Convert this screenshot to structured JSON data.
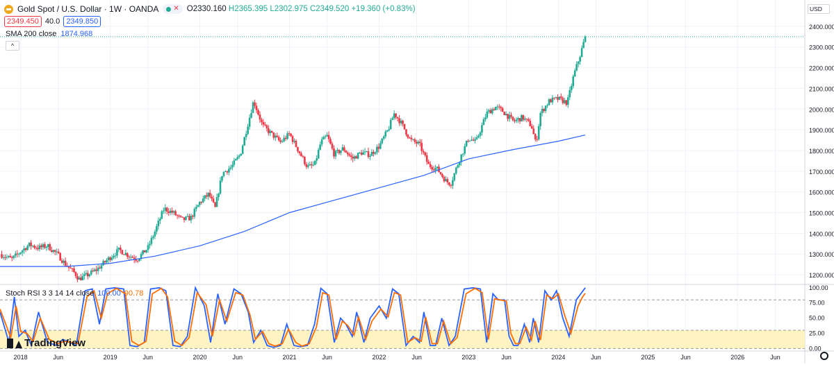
{
  "header": {
    "title": "Gold Spot / U.S. Dollar · 1W · OANDA",
    "open": "O2330.160",
    "high": "H2365.395",
    "low": "L2302.975",
    "close": "C2349.520",
    "change": "+19.360 (+0.83%)",
    "bid": "2349.450",
    "spread": "40.0",
    "ask": "2349.850",
    "currency": "USD"
  },
  "sma": {
    "label": "SMA 200 close",
    "value": "1874.968"
  },
  "rsi": {
    "label": "Stoch RSI 3 3 14 14 close",
    "k": "100.00",
    "d": "90.78"
  },
  "logo_text": "TradingView",
  "collapse_glyph": "^",
  "colors": {
    "up": "#22ab94",
    "down": "#f23645",
    "sma": "#2962ff",
    "k": "#2962ff",
    "d": "#ff6d00",
    "band": "#fff3c2"
  },
  "chart_data": [
    {
      "type": "candlestick",
      "title": "Gold Spot / U.S. Dollar · 1W · OANDA",
      "y_ticks": [
        1200,
        1300,
        1400,
        1500,
        1600,
        1700,
        1800,
        1900,
        2000,
        2100,
        2200,
        2300,
        2400
      ],
      "ylim": [
        1160,
        2500
      ],
      "x_ticks": [
        "2018",
        "Jun",
        "2019",
        "Jun",
        "2020",
        "Jun",
        "2021",
        "Jun",
        "2022",
        "Jun",
        "2023",
        "Jun",
        "2024",
        "Jun",
        "2025",
        "Jun",
        "2026",
        "Jun"
      ],
      "x_tick_values": [
        2018.0,
        2018.42,
        2019.0,
        2019.42,
        2020.0,
        2020.42,
        2021.0,
        2021.42,
        2022.0,
        2022.42,
        2023.0,
        2023.42,
        2024.0,
        2024.42,
        2025.0,
        2025.42,
        2026.0,
        2026.42
      ],
      "xlim": [
        2017.77,
        2026.75
      ],
      "last_price": 2349.52,
      "price_points": [
        [
          2017.77,
          1300
        ],
        [
          2017.9,
          1275
        ],
        [
          2018.05,
          1330
        ],
        [
          2018.1,
          1345
        ],
        [
          2018.2,
          1330
        ],
        [
          2018.3,
          1340
        ],
        [
          2018.42,
          1295
        ],
        [
          2018.5,
          1250
        ],
        [
          2018.6,
          1210
        ],
        [
          2018.65,
          1180
        ],
        [
          2018.75,
          1200
        ],
        [
          2018.85,
          1225
        ],
        [
          2019.0,
          1285
        ],
        [
          2019.1,
          1320
        ],
        [
          2019.2,
          1295
        ],
        [
          2019.3,
          1275
        ],
        [
          2019.42,
          1330
        ],
        [
          2019.5,
          1410
        ],
        [
          2019.6,
          1520
        ],
        [
          2019.7,
          1500
        ],
        [
          2019.8,
          1465
        ],
        [
          2019.9,
          1475
        ],
        [
          2020.0,
          1550
        ],
        [
          2020.1,
          1590
        ],
        [
          2020.17,
          1520
        ],
        [
          2020.25,
          1690
        ],
        [
          2020.35,
          1720
        ],
        [
          2020.45,
          1780
        ],
        [
          2020.52,
          1900
        ],
        [
          2020.6,
          2040
        ],
        [
          2020.7,
          1920
        ],
        [
          2020.8,
          1880
        ],
        [
          2020.9,
          1840
        ],
        [
          2021.0,
          1880
        ],
        [
          2021.1,
          1800
        ],
        [
          2021.2,
          1720
        ],
        [
          2021.28,
          1730
        ],
        [
          2021.35,
          1840
        ],
        [
          2021.42,
          1870
        ],
        [
          2021.5,
          1780
        ],
        [
          2021.6,
          1810
        ],
        [
          2021.7,
          1760
        ],
        [
          2021.8,
          1790
        ],
        [
          2021.9,
          1780
        ],
        [
          2022.0,
          1820
        ],
        [
          2022.1,
          1900
        ],
        [
          2022.17,
          1980
        ],
        [
          2022.25,
          1930
        ],
        [
          2022.35,
          1850
        ],
        [
          2022.45,
          1830
        ],
        [
          2022.55,
          1730
        ],
        [
          2022.65,
          1710
        ],
        [
          2022.75,
          1650
        ],
        [
          2022.8,
          1640
        ],
        [
          2022.9,
          1760
        ],
        [
          2023.0,
          1860
        ],
        [
          2023.08,
          1840
        ],
        [
          2023.2,
          1980
        ],
        [
          2023.3,
          2010
        ],
        [
          2023.38,
          1990
        ],
        [
          2023.5,
          1940
        ],
        [
          2023.6,
          1960
        ],
        [
          2023.7,
          1920
        ],
        [
          2023.75,
          1830
        ],
        [
          2023.8,
          1980
        ],
        [
          2023.9,
          2040
        ],
        [
          2024.0,
          2050
        ],
        [
          2024.1,
          2030
        ],
        [
          2024.17,
          2160
        ],
        [
          2024.25,
          2270
        ],
        [
          2024.3,
          2349.52
        ]
      ],
      "sma_points": [
        [
          2017.77,
          1240
        ],
        [
          2018.5,
          1240
        ],
        [
          2019.0,
          1255
        ],
        [
          2019.5,
          1290
        ],
        [
          2020.0,
          1340
        ],
        [
          2020.5,
          1410
        ],
        [
          2021.0,
          1500
        ],
        [
          2021.5,
          1560
        ],
        [
          2022.0,
          1620
        ],
        [
          2022.5,
          1680
        ],
        [
          2023.0,
          1760
        ],
        [
          2023.5,
          1805
        ],
        [
          2024.0,
          1845
        ],
        [
          2024.3,
          1874.968
        ]
      ]
    },
    {
      "type": "line",
      "title": "Stoch RSI 3 3 14 14 close",
      "y_ticks": [
        0.0,
        25.0,
        50.0,
        75.0,
        100.0
      ],
      "y_tick_labels": [
        "0.00",
        "25.00",
        "50.00",
        "75.00",
        "100.00"
      ],
      "ylim": [
        -3,
        102
      ],
      "band": [
        20,
        80
      ],
      "xlim": [
        2017.77,
        2026.75
      ],
      "series": [
        {
          "name": "K",
          "values": [
            [
              2017.77,
              60
            ],
            [
              2017.87,
              10
            ],
            [
              2017.93,
              85
            ],
            [
              2017.98,
              20
            ],
            [
              2018.05,
              30
            ],
            [
              2018.12,
              5
            ],
            [
              2018.2,
              60
            ],
            [
              2018.3,
              10
            ],
            [
              2018.4,
              5
            ],
            [
              2018.47,
              15
            ],
            [
              2018.55,
              10
            ],
            [
              2018.62,
              5
            ],
            [
              2018.72,
              95
            ],
            [
              2018.8,
              98
            ],
            [
              2018.88,
              40
            ],
            [
              2018.95,
              98
            ],
            [
              2019.05,
              100
            ],
            [
              2019.15,
              98
            ],
            [
              2019.22,
              5
            ],
            [
              2019.3,
              3
            ],
            [
              2019.38,
              10
            ],
            [
              2019.45,
              98
            ],
            [
              2019.55,
              100
            ],
            [
              2019.62,
              95
            ],
            [
              2019.7,
              5
            ],
            [
              2019.78,
              3
            ],
            [
              2019.86,
              20
            ],
            [
              2019.95,
              100
            ],
            [
              2020.05,
              70
            ],
            [
              2020.12,
              10
            ],
            [
              2020.2,
              90
            ],
            [
              2020.28,
              40
            ],
            [
              2020.38,
              98
            ],
            [
              2020.46,
              90
            ],
            [
              2020.54,
              60
            ],
            [
              2020.6,
              10
            ],
            [
              2020.68,
              30
            ],
            [
              2020.75,
              5
            ],
            [
              2020.82,
              2
            ],
            [
              2020.9,
              5
            ],
            [
              2020.97,
              40
            ],
            [
              2021.05,
              5
            ],
            [
              2021.12,
              3
            ],
            [
              2021.2,
              5
            ],
            [
              2021.28,
              40
            ],
            [
              2021.35,
              99
            ],
            [
              2021.42,
              90
            ],
            [
              2021.5,
              10
            ],
            [
              2021.57,
              50
            ],
            [
              2021.63,
              40
            ],
            [
              2021.7,
              20
            ],
            [
              2021.75,
              60
            ],
            [
              2021.83,
              10
            ],
            [
              2021.9,
              50
            ],
            [
              2022.0,
              70
            ],
            [
              2022.08,
              50
            ],
            [
              2022.15,
              98
            ],
            [
              2022.22,
              90
            ],
            [
              2022.3,
              5
            ],
            [
              2022.38,
              20
            ],
            [
              2022.45,
              10
            ],
            [
              2022.5,
              60
            ],
            [
              2022.57,
              5
            ],
            [
              2022.63,
              5
            ],
            [
              2022.7,
              50
            ],
            [
              2022.78,
              5
            ],
            [
              2022.85,
              20
            ],
            [
              2022.95,
              98
            ],
            [
              2023.05,
              100
            ],
            [
              2023.13,
              98
            ],
            [
              2023.2,
              10
            ],
            [
              2023.27,
              90
            ],
            [
              2023.33,
              80
            ],
            [
              2023.4,
              80
            ],
            [
              2023.45,
              20
            ],
            [
              2023.5,
              5
            ],
            [
              2023.55,
              5
            ],
            [
              2023.62,
              40
            ],
            [
              2023.68,
              10
            ],
            [
              2023.72,
              50
            ],
            [
              2023.78,
              10
            ],
            [
              2023.85,
              95
            ],
            [
              2023.92,
              80
            ],
            [
              2023.98,
              95
            ],
            [
              2024.05,
              50
            ],
            [
              2024.12,
              20
            ],
            [
              2024.2,
              80
            ],
            [
              2024.25,
              90
            ],
            [
              2024.3,
              100
            ]
          ]
        },
        {
          "name": "D",
          "values": [
            [
              2017.77,
              65
            ],
            [
              2017.89,
              18
            ],
            [
              2017.95,
              70
            ],
            [
              2018.0,
              28
            ],
            [
              2018.07,
              25
            ],
            [
              2018.14,
              12
            ],
            [
              2018.22,
              50
            ],
            [
              2018.32,
              15
            ],
            [
              2018.42,
              8
            ],
            [
              2018.49,
              12
            ],
            [
              2018.57,
              10
            ],
            [
              2018.64,
              8
            ],
            [
              2018.74,
              85
            ],
            [
              2018.82,
              95
            ],
            [
              2018.9,
              50
            ],
            [
              2018.97,
              90
            ],
            [
              2019.07,
              99
            ],
            [
              2019.17,
              90
            ],
            [
              2019.24,
              12
            ],
            [
              2019.32,
              5
            ],
            [
              2019.4,
              12
            ],
            [
              2019.47,
              90
            ],
            [
              2019.57,
              99
            ],
            [
              2019.64,
              85
            ],
            [
              2019.72,
              12
            ],
            [
              2019.8,
              5
            ],
            [
              2019.88,
              18
            ],
            [
              2019.97,
              92
            ],
            [
              2020.07,
              72
            ],
            [
              2020.14,
              20
            ],
            [
              2020.22,
              80
            ],
            [
              2020.3,
              45
            ],
            [
              2020.4,
              92
            ],
            [
              2020.48,
              88
            ],
            [
              2020.56,
              55
            ],
            [
              2020.62,
              15
            ],
            [
              2020.7,
              28
            ],
            [
              2020.77,
              8
            ],
            [
              2020.84,
              4
            ],
            [
              2020.92,
              8
            ],
            [
              2020.99,
              32
            ],
            [
              2021.07,
              10
            ],
            [
              2021.14,
              4
            ],
            [
              2021.22,
              8
            ],
            [
              2021.3,
              35
            ],
            [
              2021.37,
              92
            ],
            [
              2021.44,
              88
            ],
            [
              2021.52,
              15
            ],
            [
              2021.59,
              45
            ],
            [
              2021.65,
              38
            ],
            [
              2021.72,
              22
            ],
            [
              2021.77,
              52
            ],
            [
              2021.85,
              15
            ],
            [
              2021.92,
              45
            ],
            [
              2022.02,
              65
            ],
            [
              2022.1,
              52
            ],
            [
              2022.17,
              92
            ],
            [
              2022.24,
              88
            ],
            [
              2022.32,
              10
            ],
            [
              2022.4,
              18
            ],
            [
              2022.47,
              12
            ],
            [
              2022.52,
              52
            ],
            [
              2022.59,
              8
            ],
            [
              2022.65,
              8
            ],
            [
              2022.72,
              45
            ],
            [
              2022.8,
              8
            ],
            [
              2022.87,
              18
            ],
            [
              2022.97,
              90
            ],
            [
              2023.07,
              99
            ],
            [
              2023.15,
              92
            ],
            [
              2023.22,
              15
            ],
            [
              2023.29,
              82
            ],
            [
              2023.35,
              80
            ],
            [
              2023.42,
              78
            ],
            [
              2023.47,
              25
            ],
            [
              2023.52,
              8
            ],
            [
              2023.57,
              8
            ],
            [
              2023.64,
              35
            ],
            [
              2023.7,
              14
            ],
            [
              2023.74,
              45
            ],
            [
              2023.8,
              14
            ],
            [
              2023.87,
              88
            ],
            [
              2023.94,
              82
            ],
            [
              2024.0,
              90
            ],
            [
              2024.07,
              55
            ],
            [
              2024.14,
              25
            ],
            [
              2024.22,
              70
            ],
            [
              2024.27,
              85
            ],
            [
              2024.3,
              90.78
            ]
          ]
        }
      ]
    }
  ]
}
